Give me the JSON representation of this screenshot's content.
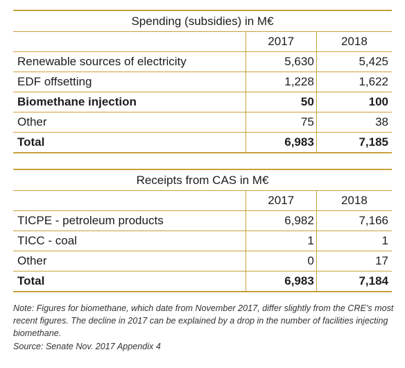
{
  "spending": {
    "title": "Spending (subsidies) in M€",
    "years": [
      "2017",
      "2018"
    ],
    "rows": [
      {
        "label": "Renewable sources of electricity",
        "v2017": "5,630",
        "v2018": "5,425"
      },
      {
        "label": "EDF offsetting",
        "v2017": "1,228",
        "v2018": "1,622"
      },
      {
        "label": "Biomethane injection",
        "v2017": "50",
        "v2018": "100"
      },
      {
        "label": "Other",
        "v2017": "75",
        "v2018": "38"
      },
      {
        "label": "Total",
        "v2017": "6,983",
        "v2018": "7,185"
      }
    ]
  },
  "receipts": {
    "title": "Receipts from CAS in M€",
    "years": [
      "2017",
      "2018"
    ],
    "rows": [
      {
        "label": "TICPE - petroleum products",
        "v2017": "6,982",
        "v2018": "7,166"
      },
      {
        "label": "TICC - coal",
        "v2017": "1",
        "v2018": "1"
      },
      {
        "label": "Other",
        "v2017": "0",
        "v2018": "17"
      },
      {
        "label": "Total",
        "v2017": "6,983",
        "v2018": "7,184"
      }
    ]
  },
  "note": "Note: Figures for biomethane, which date from November 2017, differ slightly from the CRE's most recent figures. The decline in 2017 can be explained by a drop in the number of facilities injecting biomethane.",
  "source": "Source: Senate Nov. 2017 Appendix 4",
  "colors": {
    "rule": "#c9a13b",
    "text": "#1c1c1c"
  }
}
